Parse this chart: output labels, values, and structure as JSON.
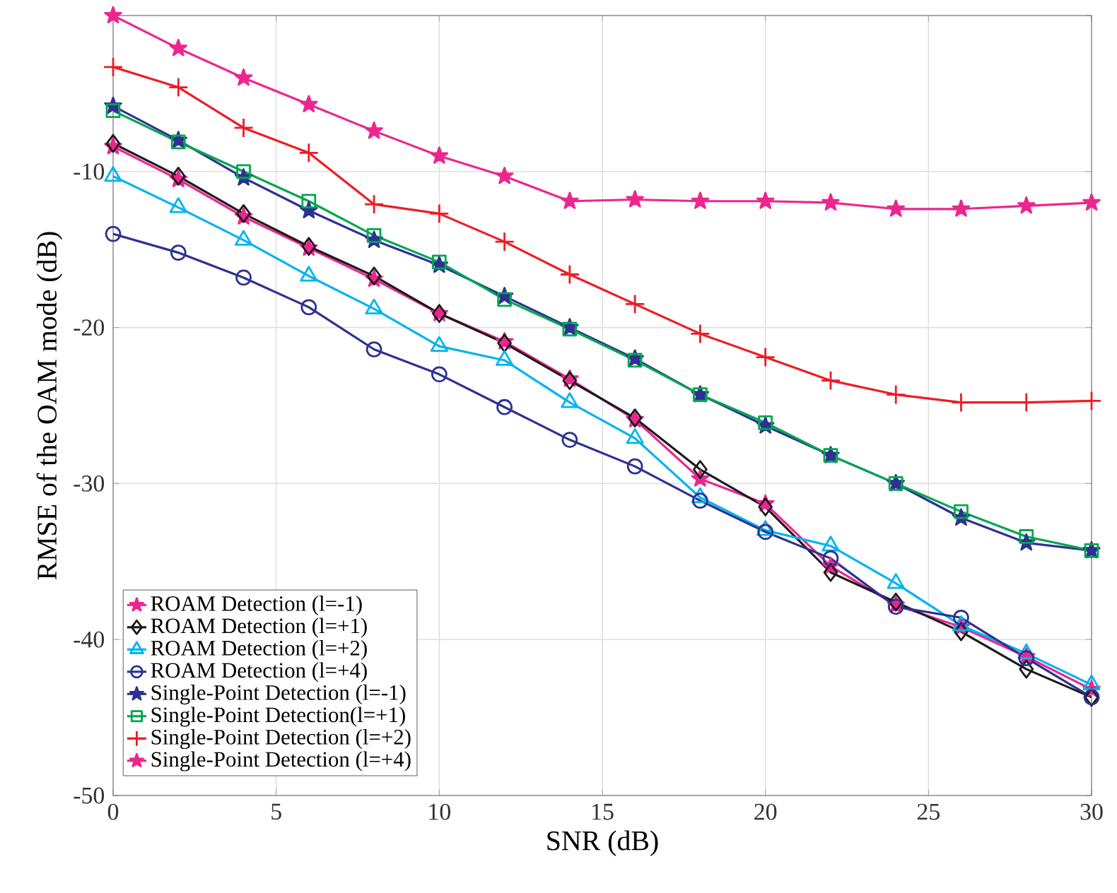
{
  "chart_data": {
    "type": "line",
    "xlabel": "SNR (dB)",
    "ylabel": "RMSE of the OAM mode (dB)",
    "x": [
      0,
      2,
      4,
      6,
      8,
      10,
      12,
      14,
      16,
      18,
      20,
      22,
      24,
      26,
      28,
      30
    ],
    "xlim": [
      0,
      30
    ],
    "xticks": [
      0,
      5,
      10,
      15,
      20,
      25,
      30
    ],
    "ylim": [
      -50,
      0
    ],
    "yticks": [
      {
        "value": -50,
        "label": "-50"
      },
      {
        "value": -40,
        "label": "-40"
      },
      {
        "value": -30,
        "label": "-30"
      },
      {
        "value": -20,
        "label": "-20"
      },
      {
        "value": -10,
        "label": "-10"
      },
      {
        "value": 0,
        "label": null
      }
    ],
    "grid": true,
    "legend": "bottom left",
    "line_style": "solid",
    "series": [
      {
        "name": "ROAM Detection (l=-1)",
        "color": "#ec268f",
        "marker": "star",
        "values": [
          -8.4,
          -10.5,
          -12.9,
          -14.9,
          -16.9,
          -19.1,
          -20.9,
          -23.3,
          -25.9,
          -29.7,
          -31.3,
          -35.3,
          -37.8,
          -39.2,
          -41.1,
          -43.2
        ]
      },
      {
        "name": "ROAM Detection (l=+1)",
        "color": "#1a1a1a",
        "marker": "diamond",
        "values": [
          -8.2,
          -10.3,
          -12.7,
          -14.8,
          -16.7,
          -19.1,
          -21.0,
          -23.4,
          -25.8,
          -29.1,
          -31.5,
          -35.7,
          -37.6,
          -39.5,
          -41.9,
          -43.7
        ]
      },
      {
        "name": "ROAM Detection (l=+2)",
        "color": "#00b4ef",
        "marker": "triangle",
        "values": [
          -10.3,
          -12.3,
          -14.4,
          -16.7,
          -18.8,
          -21.2,
          -22.1,
          -24.8,
          -27.1,
          -30.9,
          -33.0,
          -34.0,
          -36.4,
          -39.1,
          -40.9,
          -42.9
        ]
      },
      {
        "name": "ROAM Detection (l=+4)",
        "color": "#2e3192",
        "marker": "circle",
        "values": [
          -14.0,
          -15.2,
          -16.8,
          -18.7,
          -21.4,
          -23.0,
          -25.1,
          -27.2,
          -28.9,
          -31.1,
          -33.1,
          -34.8,
          -37.9,
          -38.6,
          -41.2,
          -43.7
        ]
      },
      {
        "name": "Single-Point Detection (l=-1)",
        "color": "#2e3192",
        "marker": "star",
        "values": [
          -5.8,
          -8.0,
          -10.4,
          -12.5,
          -14.4,
          -16.0,
          -18.0,
          -20.0,
          -22.0,
          -24.3,
          -26.3,
          -28.2,
          -30.0,
          -32.2,
          -33.8,
          -34.3
        ]
      },
      {
        "name": "Single-Point Detection(l=+1)",
        "color": "#00a651",
        "marker": "square",
        "values": [
          -6.1,
          -8.1,
          -10.0,
          -11.9,
          -14.1,
          -15.8,
          -18.2,
          -20.1,
          -22.1,
          -24.3,
          -26.1,
          -28.2,
          -30.0,
          -31.8,
          -33.4,
          -34.3
        ]
      },
      {
        "name": "Single-Point Detection (l=+2)",
        "color": "#ed1c24",
        "marker": "cross",
        "values": [
          -3.3,
          -4.6,
          -7.2,
          -8.8,
          -12.1,
          -12.7,
          -14.5,
          -16.6,
          -18.5,
          -20.4,
          -21.9,
          -23.4,
          -24.3,
          -24.8,
          -24.8,
          -24.7
        ]
      },
      {
        "name": "Single-Point Detection (l=+4)",
        "color": "#ec268f",
        "marker": "star",
        "values": [
          0,
          -2.1,
          -4.0,
          -5.7,
          -7.4,
          -9.0,
          -10.3,
          -11.9,
          -11.8,
          -11.9,
          -11.9,
          -12.0,
          -12.4,
          -12.4,
          -12.2,
          -12.0
        ]
      }
    ]
  }
}
